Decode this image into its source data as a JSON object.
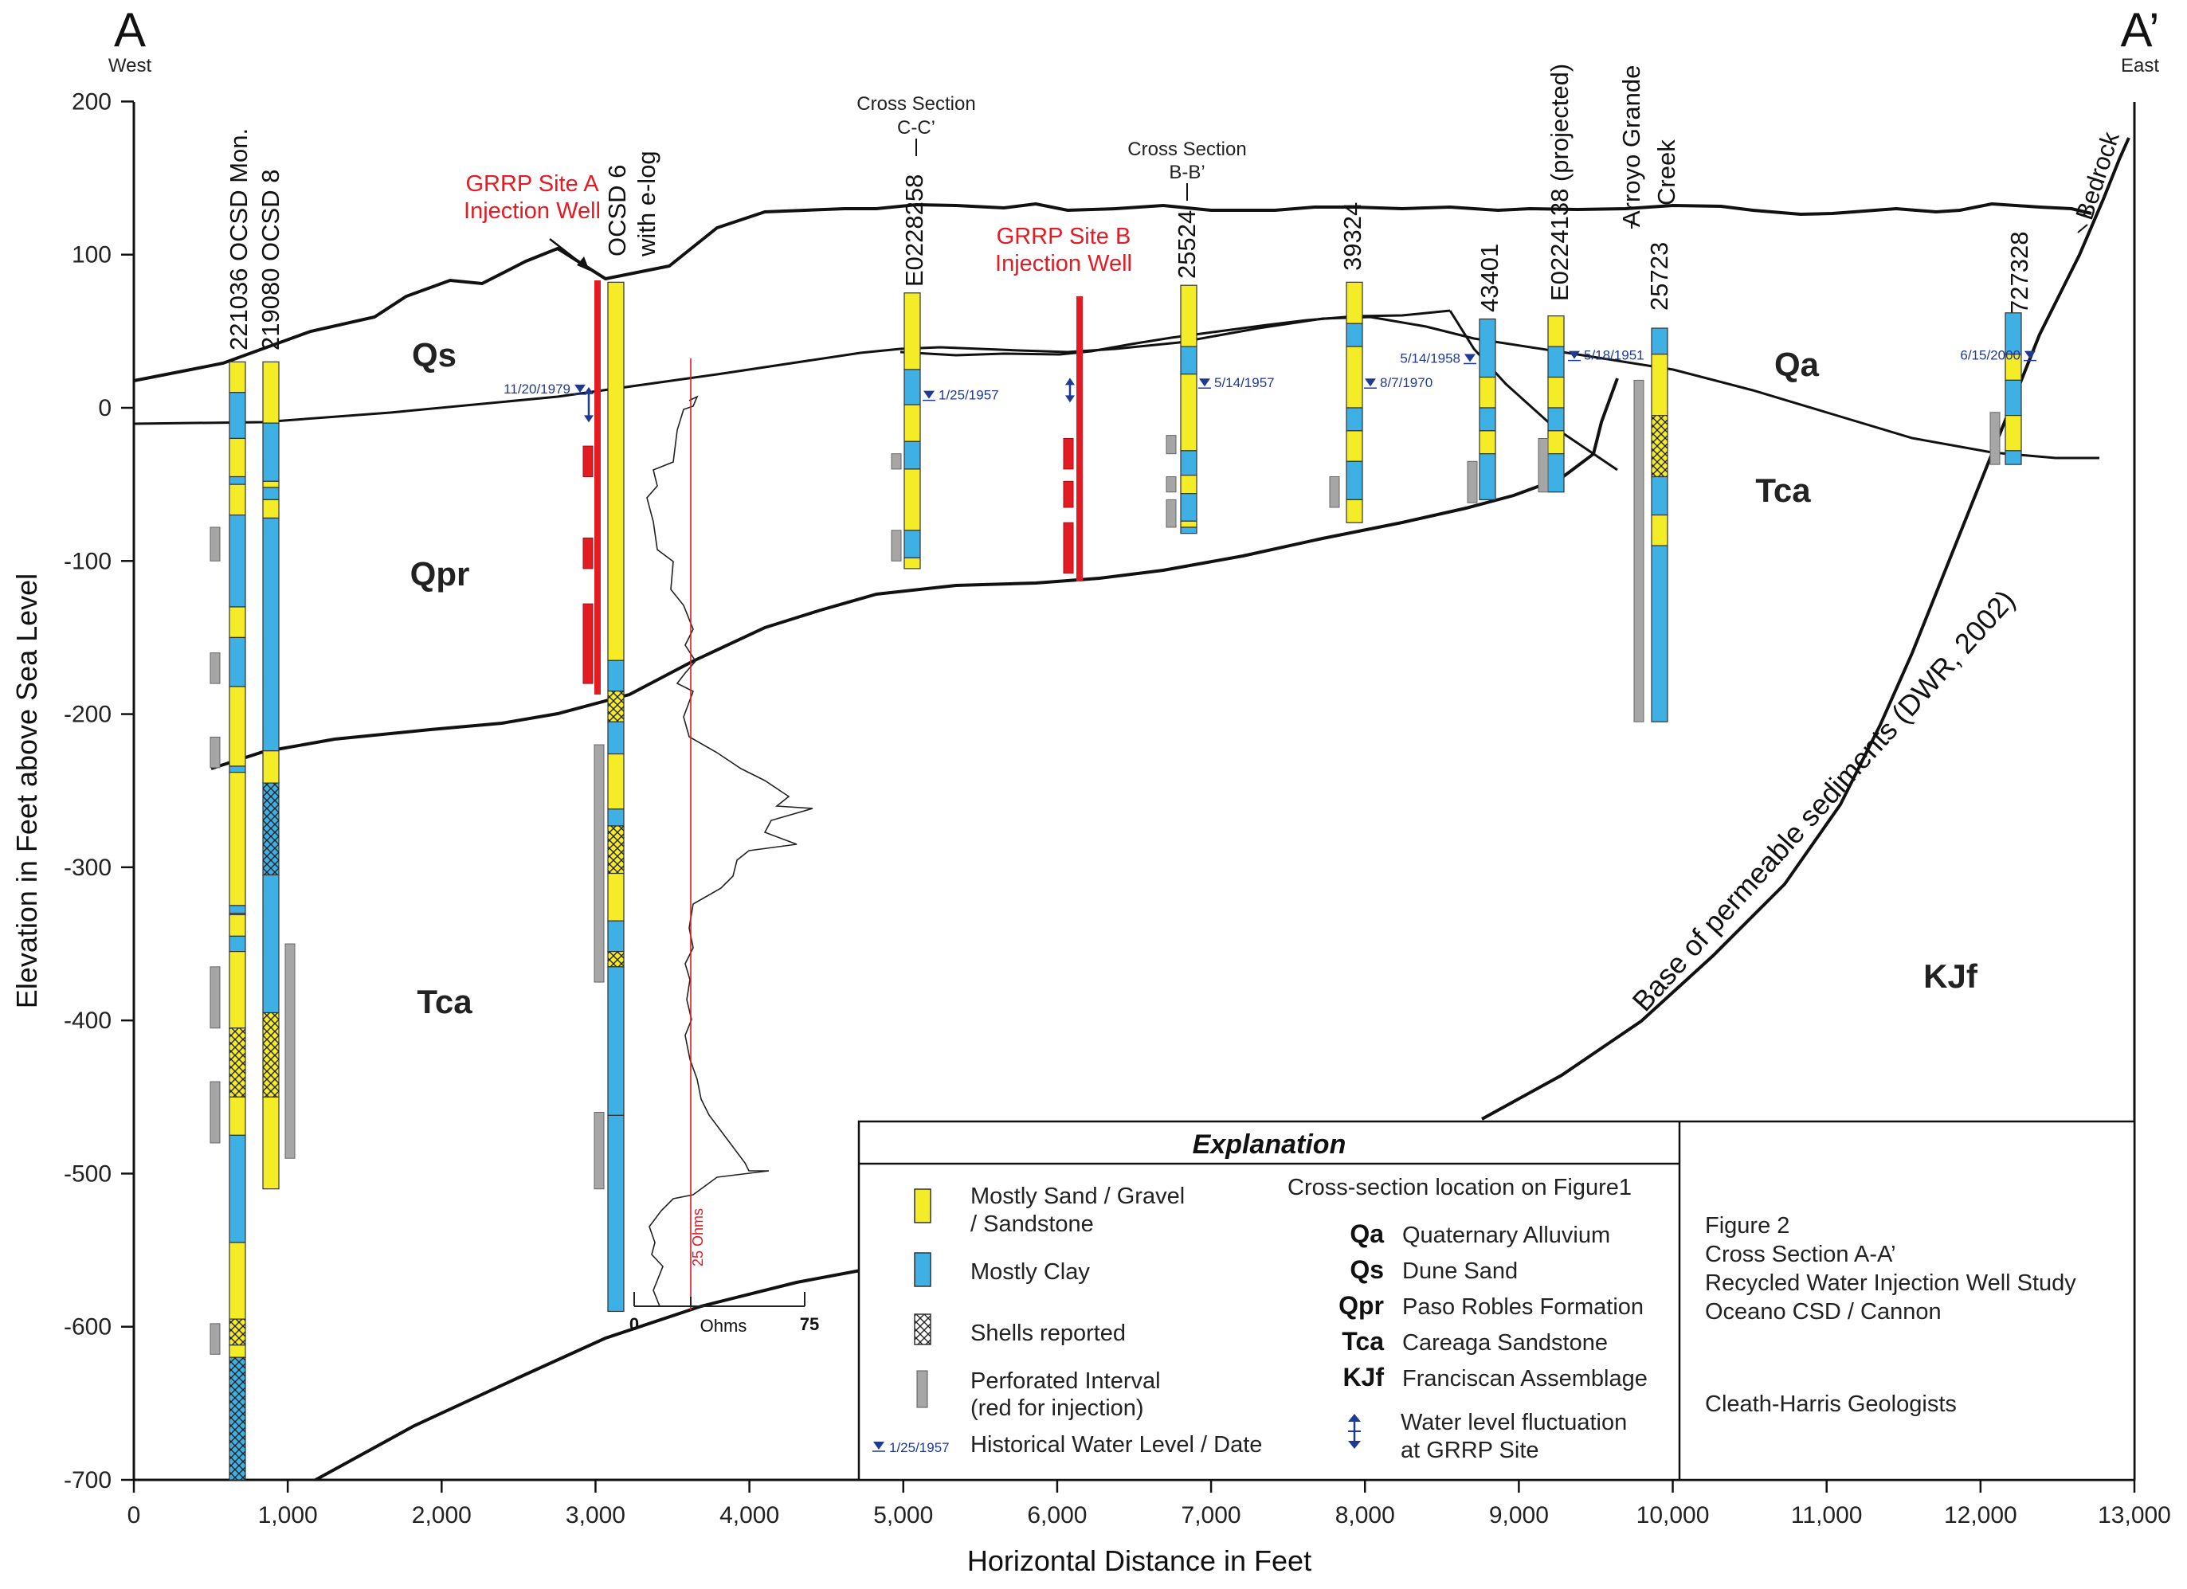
{
  "section": {
    "start_label": "A",
    "start_direction": "West",
    "end_label": "A’",
    "end_direction": "East"
  },
  "axes": {
    "y_label": "Elevation in Feet above Sea Level",
    "x_label": "Horizontal Distance in Feet",
    "y_ticks": [
      "200",
      "100",
      "0",
      "-100",
      "-200",
      "-300",
      "-400",
      "-500",
      "-600",
      "-700"
    ],
    "x_ticks": [
      "0",
      "1,000",
      "2,000",
      "3,000",
      "4,000",
      "5,000",
      "6,000",
      "7,000",
      "8,000",
      "9,000",
      "10,000",
      "11,000",
      "12,000",
      "13,000"
    ],
    "x_range": [
      0,
      13000
    ],
    "y_range": [
      -700,
      200
    ]
  },
  "wells": {
    "w221036": "221036 OCSD Mon.",
    "w219080": "219080 OCSD 8",
    "ocsd6_line1": "OCSD 6",
    "ocsd6_line2": "with e-log",
    "w_e0228258": "E0228258",
    "w25524": "25524",
    "w39324": "39324",
    "w43401": "43401",
    "w_e0224138": "E0224138 (projected)",
    "w25723": "25723",
    "w727328": "727328"
  },
  "injection_wells": {
    "site_a_line1": "GRRP Site A",
    "site_a_line2": "Injection Well",
    "site_b_line1": "GRRP Site B",
    "site_b_line2": "Injection Well"
  },
  "cross_refs": {
    "cc_line1": "Cross Section",
    "cc_line2": "C-C’",
    "bb_line1": "Cross Section",
    "bb_line2": "B-B’"
  },
  "features": {
    "creek_line1": "Arroyo Grande",
    "creek_line2": "Creek",
    "bedrock": "Bedrock",
    "base_permeable": "Base of permeable sediments (DWR, 2002)"
  },
  "water_levels": {
    "ocsd6": "11/20/1979",
    "e0228258": "1/25/1957",
    "w25524": "5/14/1957",
    "w39324": "8/7/1970",
    "w43401": "5/14/1958",
    "e0224138": "5/18/1951",
    "w727328": "6/15/2000"
  },
  "elog": {
    "axis_min": "0",
    "axis_unit": "Ohms",
    "axis_max": "75",
    "reference": "25 Ohms"
  },
  "formations": {
    "qs": "Qs",
    "qpr": "Qpr",
    "tca_west": "Tca",
    "qa": "Qa",
    "tca_east": "Tca",
    "kjf": "KJf"
  },
  "explanation": {
    "title": "Explanation",
    "sand_line1": "Mostly Sand / Gravel",
    "sand_line2": "/ Sandstone",
    "clay": "Mostly Clay",
    "shells": "Shells reported",
    "perf": "Perforated Interval",
    "perf_note": "(red for injection)",
    "wl_sample_date": "1/25/1957",
    "wl_text": "Historical Water Level / Date",
    "location_note": "Cross-section location on Figure1",
    "units": [
      {
        "code": "Qa",
        "name": "Quaternary Alluvium"
      },
      {
        "code": "Qs",
        "name": "Dune Sand"
      },
      {
        "code": "Qpr",
        "name": "Paso Robles Formation"
      },
      {
        "code": "Tca",
        "name": "Careaga Sandstone"
      },
      {
        "code": "KJf",
        "name": "Franciscan Assemblage"
      }
    ],
    "fluct_line1": "Water level fluctuation",
    "fluct_line2": "at GRRP Site"
  },
  "title_block": {
    "fig": "Figure 2",
    "line2": "Cross Section A-A’",
    "line3": "Recycled Water Injection Well Study",
    "line4": "Oceano CSD / Cannon",
    "firm": "Cleath-Harris Geologists"
  },
  "colors": {
    "sand": "#f5ec28",
    "clay": "#3fb0e3",
    "perforated": "#a6a6a6",
    "injection": "#e31b23",
    "water_level": "#1f3a93"
  }
}
